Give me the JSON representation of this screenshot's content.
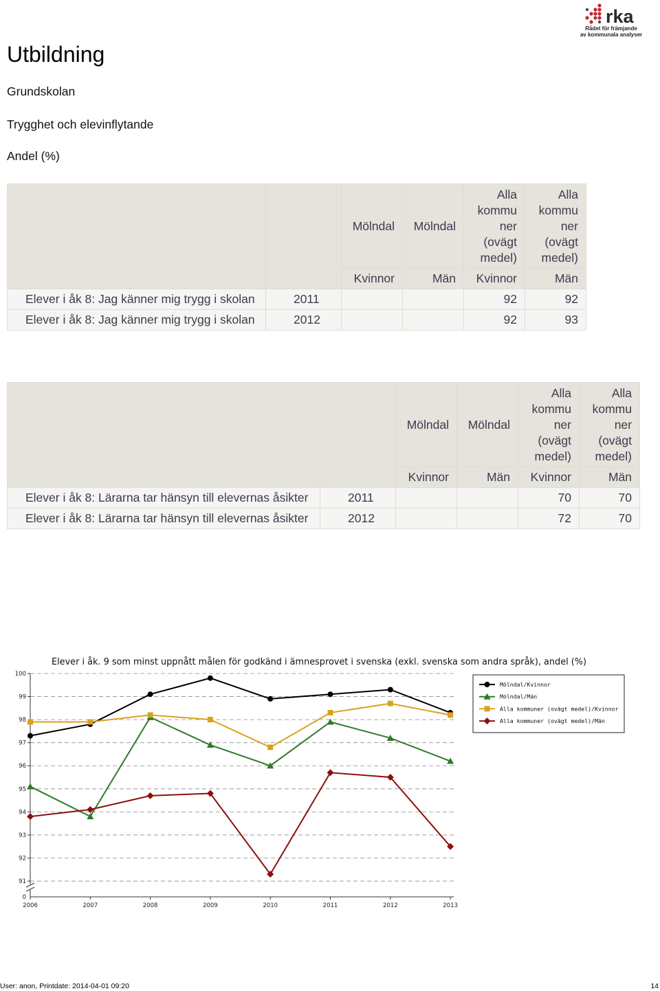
{
  "logo": {
    "wordmark": "rka",
    "tagline_line1": "Rådet för främjande",
    "tagline_line2": "av kommunala analyser",
    "brand_color": "#c1272d"
  },
  "page": {
    "title": "Utbildning",
    "section": "Grundskolan",
    "subsection": "Trygghet och elevinflytande",
    "unit": "Andel (%)"
  },
  "tables": [
    {
      "columns": [
        {
          "group": "Mölndal",
          "sex": "Kvinnor"
        },
        {
          "group": "Mölndal",
          "sex": "Män"
        },
        {
          "group": "Alla\nkommu\nner\n(ovägt\nmedel)",
          "sex": "Kvinnor"
        },
        {
          "group": "Alla\nkommu\nner\n(ovägt\nmedel)",
          "sex": "Män"
        }
      ],
      "rows": [
        {
          "label": "Elever i åk 8: Jag känner mig trygg i skolan",
          "year": "2011",
          "values": [
            null,
            null,
            "92",
            "92"
          ]
        },
        {
          "label": "Elever i åk 8: Jag känner mig trygg i skolan",
          "year": "2012",
          "values": [
            null,
            null,
            "92",
            "93"
          ]
        }
      ]
    },
    {
      "columns": [
        {
          "group": "Mölndal",
          "sex": "Kvinnor"
        },
        {
          "group": "Mölndal",
          "sex": "Män"
        },
        {
          "group": "Alla\nkommu\nner\n(ovägt\nmedel)",
          "sex": "Kvinnor"
        },
        {
          "group": "Alla\nkommu\nner\n(ovägt\nmedel)",
          "sex": "Män"
        }
      ],
      "rows": [
        {
          "label": "Elever i åk 8: Lärarna tar hänsyn till elevernas åsikter",
          "year": "2011",
          "values": [
            null,
            null,
            "70",
            "70"
          ]
        },
        {
          "label": "Elever i åk 8: Lärarna tar hänsyn till elevernas åsikter",
          "year": "2012",
          "values": [
            null,
            null,
            "72",
            "70"
          ]
        }
      ]
    }
  ],
  "chart_data": {
    "type": "line",
    "title": "Elever i åk. 9 som minst uppnått målen för godkänd i ämnesprovet i svenska (exkl. svenska som andra språk), andel (%)",
    "x": [
      "2006",
      "2007",
      "2008",
      "2009",
      "2010",
      "2011",
      "2012",
      "2013"
    ],
    "y_ticks": [
      "100",
      "99",
      "98",
      "97",
      "96",
      "95",
      "94",
      "93",
      "92",
      "91"
    ],
    "axis_break_label": "0",
    "ylim": [
      91,
      100
    ],
    "y_axis_break": true,
    "grid": true,
    "legend_position": "top-right",
    "series": [
      {
        "name": "Mölndal/Kvinnor",
        "color": "#000000",
        "marker": "circle",
        "values": [
          97.3,
          97.8,
          99.1,
          99.8,
          98.9,
          99.1,
          99.3,
          98.3
        ]
      },
      {
        "name": "Mölndal/Män",
        "color": "#2e7a2a",
        "marker": "triangle",
        "values": [
          95.1,
          93.8,
          98.1,
          96.9,
          96.0,
          97.9,
          97.2,
          96.2
        ]
      },
      {
        "name": "Alla kommuner (ovägt medel)/Kvinnor",
        "color": "#d9a21e",
        "marker": "square",
        "values": [
          97.9,
          97.9,
          98.2,
          98.0,
          96.8,
          98.3,
          98.7,
          98.2
        ]
      },
      {
        "name": "Alla kommuner (ovägt medel)/Män",
        "color": "#8b1010",
        "marker": "diamond",
        "values": [
          93.8,
          94.1,
          94.7,
          94.8,
          91.3,
          95.7,
          95.5,
          92.5
        ]
      }
    ]
  },
  "footer": {
    "user_info": "User: anon, Printdate: 2014-04-01 09:20",
    "page_number": "14"
  }
}
